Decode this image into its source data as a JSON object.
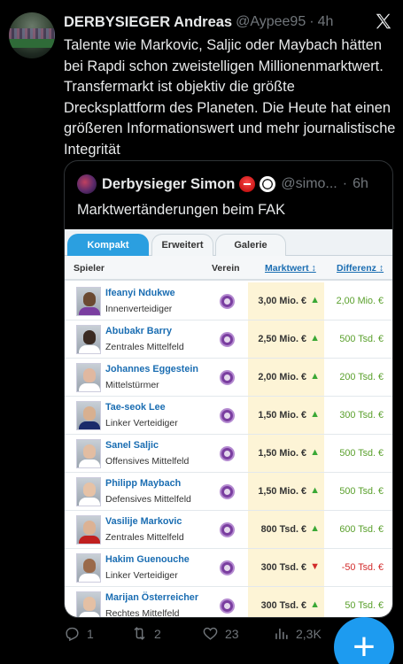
{
  "tweet": {
    "author_name": "DERBYSIEGER Andreas",
    "handle": "@Aypee95",
    "separator": "·",
    "time": "4h",
    "text": "Talente wie Markovic, Saljic oder Maybach hätten bei Rapdi schon zweistelligen Millionenmarktwert. Transfermarkt ist objektiv die größte Drecksplattform des Planeten. Die Heute hat einen größeren Informationswert und mehr journalistische Integrität"
  },
  "quote": {
    "author_name": "Derbysieger Simon",
    "handle": "@simo...",
    "separator": "·",
    "time": "6h",
    "text": "Marktwertänderungen beim FAK"
  },
  "transfermarkt": {
    "tabs": [
      "Kompakt",
      "Erweitert",
      "Galerie"
    ],
    "active_tab": 0,
    "columns": {
      "player": "Spieler",
      "club": "Verein",
      "market_value": "Marktwert",
      "difference": "Differenz",
      "sort_icon": "↕"
    },
    "rows": [
      {
        "name": "Ifeanyi Ndukwe",
        "position": "Innenverteidiger",
        "value": "3,00 Mio. €",
        "trend": "up",
        "diff": "2,00 Mio. €",
        "diff_sign": "pos",
        "skin": "#6b4a32",
        "shirt": "#7a3ea0"
      },
      {
        "name": "Abubakr Barry",
        "position": "Zentrales Mittelfeld",
        "value": "2,50 Mio. €",
        "trend": "up",
        "diff": "500 Tsd. €",
        "diff_sign": "pos",
        "skin": "#3a2a22",
        "shirt": "#ffffff"
      },
      {
        "name": "Johannes Eggestein",
        "position": "Mittelstürmer",
        "value": "2,00 Mio. €",
        "trend": "up",
        "diff": "200 Tsd. €",
        "diff_sign": "pos",
        "skin": "#e0b8a0",
        "shirt": "#ffffff"
      },
      {
        "name": "Tae-seok Lee",
        "position": "Linker Verteidiger",
        "value": "1,50 Mio. €",
        "trend": "up",
        "diff": "300 Tsd. €",
        "diff_sign": "pos",
        "skin": "#d8b090",
        "shirt": "#1a2a6a"
      },
      {
        "name": "Sanel Saljic",
        "position": "Offensives Mittelfeld",
        "value": "1,50 Mio. €",
        "trend": "up",
        "diff": "500 Tsd. €",
        "diff_sign": "pos",
        "skin": "#e2bda2",
        "shirt": "#ffffff"
      },
      {
        "name": "Philipp Maybach",
        "position": "Defensives Mittelfeld",
        "value": "1,50 Mio. €",
        "trend": "up",
        "diff": "500 Tsd. €",
        "diff_sign": "pos",
        "skin": "#e6c2a6",
        "shirt": "#ffffff"
      },
      {
        "name": "Vasilije Markovic",
        "position": "Zentrales Mittelfeld",
        "value": "800 Tsd. €",
        "trend": "up",
        "diff": "600 Tsd. €",
        "diff_sign": "pos",
        "skin": "#dcb294",
        "shirt": "#c02020"
      },
      {
        "name": "Hakim Guenouche",
        "position": "Linker Verteidiger",
        "value": "300 Tsd. €",
        "trend": "down",
        "diff": "-50 Tsd. €",
        "diff_sign": "neg",
        "skin": "#9a6a4a",
        "shirt": "#ffffff"
      },
      {
        "name": "Marijan Österreicher",
        "position": "Rechtes Mittelfeld",
        "value": "300 Tsd. €",
        "trend": "up",
        "diff": "50 Tsd. €",
        "diff_sign": "pos",
        "skin": "#e4c0a4",
        "shirt": "#ffffff"
      }
    ]
  },
  "actions": {
    "replies": "1",
    "retweets": "2",
    "likes": "23",
    "views": "2,3K"
  },
  "fab_label": "+",
  "icons": {
    "close": "x-logo-icon",
    "reply": "reply-icon",
    "retweet": "retweet-icon",
    "like": "heart-icon",
    "views": "views-icon",
    "compose": "plus-icon"
  },
  "colors": {
    "background": "#000000",
    "accent": "#1d9bf0",
    "muted": "#71767b",
    "tm_link": "#1a6db2",
    "tm_highlight": "#fdf4d6"
  }
}
